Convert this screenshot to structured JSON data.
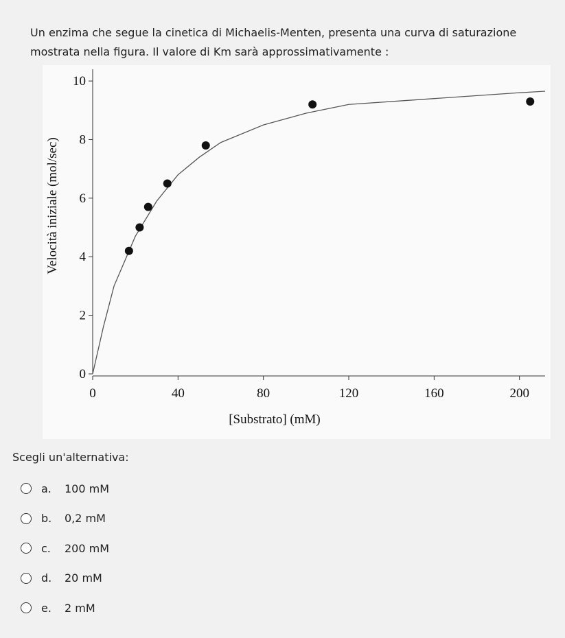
{
  "question": {
    "text": "Un enzima che segue la cinetica di Michaelis-Menten, presenta una curva di saturazione mostrata nella figura. Il valore di Km sarà approssimativamente :"
  },
  "chart_data": {
    "type": "scatter",
    "y_label": "Velocità iniziale (mol/sec)",
    "x_label": "[Substrato] (mM)",
    "xlim": [
      0,
      212
    ],
    "xticks": [
      0,
      40,
      80,
      120,
      160,
      200
    ],
    "ylim": [
      0,
      10.4
    ],
    "yticks": [
      0,
      2,
      4,
      6,
      8,
      10
    ],
    "series": [
      {
        "type": "line",
        "color": "#555555",
        "x": [
          0,
          5,
          10,
          20,
          30,
          40,
          50,
          60,
          80,
          100,
          120,
          160,
          200,
          212
        ],
        "values": [
          0,
          1.6,
          3,
          4.7,
          5.9,
          6.8,
          7.4,
          7.9,
          8.5,
          8.9,
          9.2,
          9.4,
          9.6,
          9.65
        ]
      },
      {
        "type": "scatter",
        "color": "#111111",
        "x": [
          17,
          22,
          26,
          35,
          53,
          103,
          205
        ],
        "values": [
          4.2,
          5.0,
          5.7,
          6.5,
          7.8,
          9.2,
          9.3
        ]
      }
    ]
  },
  "answers": {
    "prompt": "Scegli un'alternativa:",
    "options": [
      {
        "letter": "a.",
        "text": "100 mM"
      },
      {
        "letter": "b.",
        "text": "0,2 mM"
      },
      {
        "letter": "c.",
        "text": "200 mM"
      },
      {
        "letter": "d.",
        "text": "20 mM"
      },
      {
        "letter": "e.",
        "text": "2 mM"
      }
    ]
  }
}
